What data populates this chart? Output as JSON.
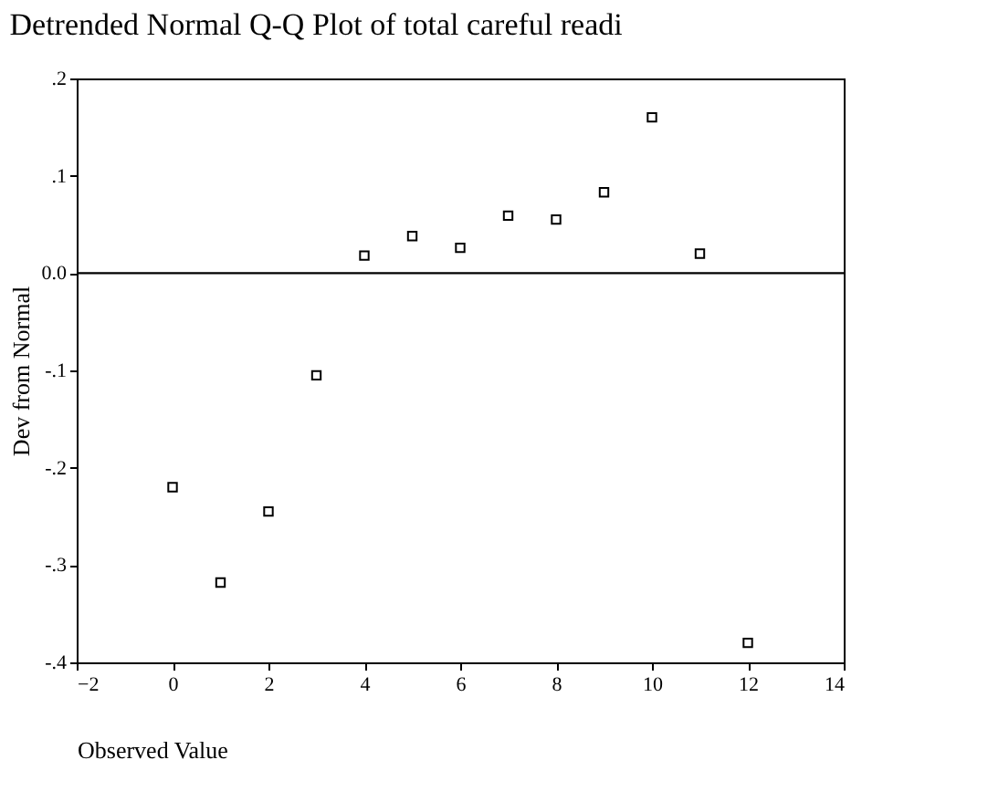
{
  "chart_data": {
    "type": "scatter",
    "title": "Detrended Normal Q-Q Plot of total careful readi",
    "xlabel": "Observed Value",
    "ylabel": "Dev from Normal",
    "x": [
      0,
      1,
      2,
      3,
      4,
      5,
      6,
      7,
      8,
      9,
      10,
      11,
      12
    ],
    "series": [
      {
        "color": "#000000",
        "values": [
          -0.22,
          -0.318,
          -0.245,
          -0.105,
          0.018,
          0.038,
          0.026,
          0.059,
          0.055,
          0.083,
          0.16,
          0.02,
          -0.38
        ]
      }
    ],
    "xlim": [
      -2,
      14
    ],
    "xticks": [
      -2,
      0,
      2,
      4,
      6,
      8,
      10,
      12,
      14
    ],
    "ylim": [
      -0.4,
      0.2
    ],
    "yticks": [
      {
        "value": -0.4,
        "label": "-.4"
      },
      {
        "value": -0.3,
        "label": "-.3"
      },
      {
        "value": -0.2,
        "label": "-.2"
      },
      {
        "value": -0.1,
        "label": "-.1"
      },
      {
        "value": 0,
        "label": "0.0"
      },
      {
        "value": 0.1,
        "label": ".1"
      },
      {
        "value": 0.2,
        "label": ".2"
      }
    ],
    "ref_lines": [
      {
        "axis": "y",
        "value": 0,
        "color": "#000000"
      }
    ],
    "marker": "square",
    "grid": false
  }
}
